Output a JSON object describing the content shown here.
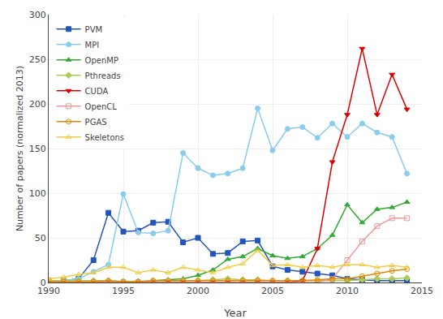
{
  "chart_data": {
    "type": "line",
    "x": [
      1990,
      1991,
      1992,
      1993,
      1994,
      1995,
      1996,
      1997,
      1998,
      1999,
      2000,
      2001,
      2002,
      2003,
      2004,
      2005,
      2006,
      2007,
      2008,
      2009,
      2010,
      2011,
      2012,
      2013,
      2014
    ],
    "series": [
      {
        "name": "PVM",
        "color": "#2255bb",
        "marker": "square",
        "values": [
          2,
          2,
          4,
          25,
          78,
          57,
          58,
          67,
          68,
          45,
          50,
          32,
          33,
          46,
          47,
          18,
          14,
          12,
          10,
          8,
          4,
          3,
          2,
          2,
          2
        ]
      },
      {
        "name": "MPI",
        "color": "#88ccee",
        "marker": "circle",
        "values": [
          2,
          2,
          4,
          12,
          20,
          99,
          56,
          55,
          58,
          145,
          128,
          120,
          122,
          128,
          195,
          148,
          172,
          174,
          162,
          178,
          163,
          178,
          168,
          163,
          122
        ]
      },
      {
        "name": "OpenMP",
        "color": "#33aa33",
        "marker": "triangle-up",
        "values": [
          0,
          0,
          0,
          0,
          0,
          0,
          0,
          2,
          3,
          4,
          8,
          14,
          26,
          29,
          38,
          30,
          27,
          29,
          38,
          53,
          87,
          67,
          82,
          84,
          90
        ]
      },
      {
        "name": "Pthreads",
        "color": "#aacc55",
        "marker": "diamond",
        "values": [
          2,
          2,
          2,
          2,
          2,
          1,
          1,
          2,
          2,
          2,
          2,
          3,
          4,
          3,
          3,
          2,
          2,
          2,
          2,
          2,
          2,
          3,
          4,
          4,
          5
        ]
      },
      {
        "name": "CUDA",
        "color": "#dd0000",
        "marker": "triangle-down",
        "values": [
          0,
          0,
          0,
          0,
          0,
          0,
          0,
          0,
          0,
          0,
          0,
          0,
          0,
          0,
          0,
          0,
          0,
          2,
          38,
          135,
          188,
          262,
          188,
          233,
          194
        ]
      },
      {
        "name": "OpenCL",
        "color": "#ee9999",
        "marker": "square-open",
        "values": [
          0,
          0,
          0,
          0,
          0,
          0,
          0,
          0,
          0,
          0,
          0,
          0,
          0,
          0,
          0,
          0,
          0,
          0,
          0,
          4,
          25,
          46,
          63,
          72,
          72
        ]
      },
      {
        "name": "PGAS",
        "color": "#dd8800",
        "marker": "circle-open",
        "values": [
          1,
          1,
          1,
          1,
          2,
          1,
          1,
          2,
          2,
          2,
          2,
          2,
          2,
          2,
          2,
          2,
          2,
          2,
          3,
          4,
          4,
          7,
          10,
          13,
          15
        ]
      },
      {
        "name": "Skeletons",
        "color": "#eecc44",
        "marker": "triangle-up-open",
        "values": [
          4,
          6,
          9,
          11,
          17,
          17,
          11,
          14,
          11,
          17,
          14,
          11,
          17,
          21,
          36,
          19,
          20,
          17,
          19,
          17,
          20,
          20,
          17,
          19,
          17
        ]
      }
    ],
    "xlabel": "Year",
    "ylabel": "Number of papers (normalized 2013)",
    "xlim": [
      1990,
      2015
    ],
    "ylim": [
      0,
      300
    ],
    "xticks": [
      1990,
      1995,
      2000,
      2005,
      2010,
      2015
    ],
    "yticks": [
      0,
      50,
      100,
      150,
      200,
      250,
      300
    ],
    "grid": true,
    "legend": "upper left"
  }
}
